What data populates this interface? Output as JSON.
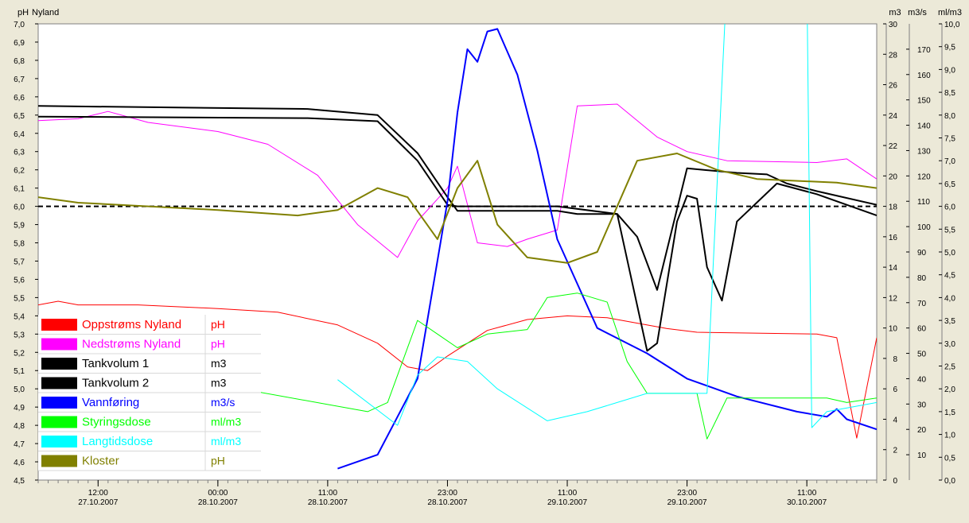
{
  "chart_data": {
    "type": "line",
    "title": "Nyland",
    "x_axis": {
      "start": "2007-10-27 06:00",
      "end": "2007-10-30 18:00",
      "tick_labels": [
        {
          "time": "12:00",
          "date": "27.10.2007",
          "at": "2007-10-27 12:00"
        },
        {
          "time": "00:00",
          "date": "28.10.2007",
          "at": "2007-10-28 00:00"
        },
        {
          "time": "11:00",
          "date": "28.10.2007",
          "at": "2007-10-28 11:00"
        },
        {
          "time": "23:00",
          "date": "28.10.2007",
          "at": "2007-10-28 23:00"
        },
        {
          "time": "11:00",
          "date": "29.10.2007",
          "at": "2007-10-29 11:00"
        },
        {
          "time": "23:00",
          "date": "29.10.2007",
          "at": "2007-10-29 23:00"
        },
        {
          "time": "11:00",
          "date": "30.10.2007",
          "at": "2007-10-30 11:00"
        }
      ]
    },
    "axes": [
      {
        "id": "ph",
        "unit": "pH",
        "min": 4.5,
        "max": 7.0,
        "side": "left",
        "ticks": [
          "4,5",
          "4,6",
          "4,7",
          "4,8",
          "4,9",
          "5,0",
          "5,1",
          "5,2",
          "5,3",
          "5,4",
          "5,5",
          "5,6",
          "5,7",
          "5,8",
          "5,9",
          "6,0",
          "6,1",
          "6,2",
          "6,3",
          "6,4",
          "6,5",
          "6,6",
          "6,7",
          "6,8",
          "6,9",
          "7,0"
        ]
      },
      {
        "id": "m3",
        "unit": "m3",
        "min": 0,
        "max": 30,
        "side": "right",
        "ticks": [
          "0",
          "2",
          "4",
          "6",
          "8",
          "10",
          "12",
          "14",
          "16",
          "18",
          "20",
          "22",
          "24",
          "26",
          "28",
          "30"
        ]
      },
      {
        "id": "m3s",
        "unit": "m3/s",
        "min": 0,
        "max": 180,
        "side": "right",
        "ticks": [
          "10",
          "20",
          "30",
          "40",
          "50",
          "60",
          "70",
          "80",
          "90",
          "100",
          "110",
          "120",
          "130",
          "140",
          "150",
          "160",
          "170"
        ]
      },
      {
        "id": "mlm3",
        "unit": "ml/m3",
        "min": 0,
        "max": 10,
        "side": "right",
        "ticks": [
          "0,0",
          "0,5",
          "1,0",
          "1,5",
          "2,0",
          "2,5",
          "3,0",
          "3,5",
          "4,0",
          "4,5",
          "5,0",
          "5,5",
          "6,0",
          "6,5",
          "7,0",
          "7,5",
          "8,0",
          "8,5",
          "9,0",
          "9,5",
          "10,0"
        ]
      }
    ],
    "reference_line": {
      "axis": "ph",
      "value": 6.0,
      "style": "dashed"
    },
    "legend_position": "bottom-left",
    "series": [
      {
        "name": "Oppstrøms Nyland",
        "unit": "pH",
        "axis": "ph",
        "color": "#ff0000",
        "width": 1,
        "points": [
          [
            "2007-10-27 06:00",
            5.46
          ],
          [
            "2007-10-27 08:00",
            5.48
          ],
          [
            "2007-10-27 10:00",
            5.46
          ],
          [
            "2007-10-27 16:00",
            5.46
          ],
          [
            "2007-10-28 00:00",
            5.44
          ],
          [
            "2007-10-28 06:00",
            5.42
          ],
          [
            "2007-10-28 12:00",
            5.35
          ],
          [
            "2007-10-28 16:00",
            5.25
          ],
          [
            "2007-10-28 19:00",
            5.12
          ],
          [
            "2007-10-28 21:00",
            5.1
          ],
          [
            "2007-10-28 23:00",
            5.18
          ],
          [
            "2007-10-29 03:00",
            5.32
          ],
          [
            "2007-10-29 07:00",
            5.38
          ],
          [
            "2007-10-29 11:00",
            5.4
          ],
          [
            "2007-10-29 15:00",
            5.39
          ],
          [
            "2007-10-29 21:00",
            5.33
          ],
          [
            "2007-10-30 00:00",
            5.31
          ],
          [
            "2007-10-30 12:00",
            5.3
          ],
          [
            "2007-10-30 14:00",
            5.28
          ],
          [
            "2007-10-30 16:00",
            4.73
          ],
          [
            "2007-10-30 18:00",
            5.28
          ]
        ]
      },
      {
        "name": "Nedstrøms Nyland",
        "unit": "pH",
        "axis": "ph",
        "color": "#ff00ff",
        "width": 1,
        "points": [
          [
            "2007-10-27 06:00",
            6.47
          ],
          [
            "2007-10-27 10:00",
            6.48
          ],
          [
            "2007-10-27 13:00",
            6.52
          ],
          [
            "2007-10-27 17:00",
            6.46
          ],
          [
            "2007-10-28 00:00",
            6.41
          ],
          [
            "2007-10-28 05:00",
            6.34
          ],
          [
            "2007-10-28 10:00",
            6.17
          ],
          [
            "2007-10-28 14:00",
            5.9
          ],
          [
            "2007-10-28 18:00",
            5.72
          ],
          [
            "2007-10-28 20:00",
            5.92
          ],
          [
            "2007-10-28 23:00",
            6.1
          ],
          [
            "2007-10-29 00:00",
            6.22
          ],
          [
            "2007-10-29 02:00",
            5.8
          ],
          [
            "2007-10-29 05:00",
            5.78
          ],
          [
            "2007-10-29 07:00",
            5.82
          ],
          [
            "2007-10-29 10:00",
            5.87
          ],
          [
            "2007-10-29 12:00",
            6.55
          ],
          [
            "2007-10-29 16:00",
            6.56
          ],
          [
            "2007-10-29 20:00",
            6.38
          ],
          [
            "2007-10-29 23:00",
            6.3
          ],
          [
            "2007-10-30 03:00",
            6.25
          ],
          [
            "2007-10-30 12:00",
            6.24
          ],
          [
            "2007-10-30 15:00",
            6.26
          ],
          [
            "2007-10-30 18:00",
            6.15
          ]
        ]
      },
      {
        "name": "Tankvolum 1",
        "unit": "m3",
        "axis": "m3",
        "color": "#000000",
        "width": 2,
        "points": [
          [
            "2007-10-27 06:00",
            24.6
          ],
          [
            "2007-10-28 09:00",
            24.4
          ],
          [
            "2007-10-28 16:00",
            24.0
          ],
          [
            "2007-10-28 20:00",
            21.5
          ],
          [
            "2007-10-28 23:00",
            18.6
          ],
          [
            "2007-10-29 00:00",
            17.7
          ],
          [
            "2007-10-29 10:00",
            17.7
          ],
          [
            "2007-10-29 12:00",
            17.5
          ],
          [
            "2007-10-29 16:00",
            17.5
          ],
          [
            "2007-10-29 18:00",
            16.0
          ],
          [
            "2007-10-29 20:00",
            12.5
          ],
          [
            "2007-10-29 21:30",
            16.5
          ],
          [
            "2007-10-29 23:00",
            20.5
          ],
          [
            "2007-10-30 04:00",
            20.2
          ],
          [
            "2007-10-30 07:00",
            20.1
          ],
          [
            "2007-10-30 09:00",
            19.5
          ],
          [
            "2007-10-30 12:00",
            19.0
          ],
          [
            "2007-10-30 18:00",
            18.1
          ]
        ]
      },
      {
        "name": "Tankvolum 2",
        "unit": "m3",
        "axis": "m3",
        "color": "#000000",
        "width": 2,
        "points": [
          [
            "2007-10-27 06:00",
            23.9
          ],
          [
            "2007-10-28 09:00",
            23.8
          ],
          [
            "2007-10-28 16:00",
            23.6
          ],
          [
            "2007-10-28 20:00",
            21.0
          ],
          [
            "2007-10-28 23:00",
            18.1
          ],
          [
            "2007-10-29 00:00",
            18.0
          ],
          [
            "2007-10-29 10:00",
            18.0
          ],
          [
            "2007-10-29 16:00",
            17.5
          ],
          [
            "2007-10-29 19:00",
            8.5
          ],
          [
            "2007-10-29 20:00",
            9.0
          ],
          [
            "2007-10-29 22:00",
            17.0
          ],
          [
            "2007-10-29 23:00",
            18.7
          ],
          [
            "2007-10-30 00:00",
            18.5
          ],
          [
            "2007-10-30 01:00",
            14.0
          ],
          [
            "2007-10-30 02:30",
            11.8
          ],
          [
            "2007-10-30 04:00",
            17.0
          ],
          [
            "2007-10-30 08:00",
            19.5
          ],
          [
            "2007-10-30 12:00",
            18.8
          ],
          [
            "2007-10-30 18:00",
            17.4
          ]
        ]
      },
      {
        "name": "Vannføring",
        "unit": "m3/s",
        "axis": "m3s",
        "color": "#0000ff",
        "width": 2,
        "points": [
          [
            "2007-10-28 12:00",
            4.5
          ],
          [
            "2007-10-28 16:00",
            10
          ],
          [
            "2007-10-28 20:00",
            40
          ],
          [
            "2007-10-28 23:00",
            110
          ],
          [
            "2007-10-29 00:00",
            145
          ],
          [
            "2007-10-29 01:00",
            170
          ],
          [
            "2007-10-29 02:00",
            165
          ],
          [
            "2007-10-29 03:00",
            177
          ],
          [
            "2007-10-29 04:00",
            178
          ],
          [
            "2007-10-29 06:00",
            160
          ],
          [
            "2007-10-29 08:00",
            130
          ],
          [
            "2007-10-29 10:00",
            95
          ],
          [
            "2007-10-29 14:00",
            60
          ],
          [
            "2007-10-29 19:00",
            50
          ],
          [
            "2007-10-29 23:00",
            40
          ],
          [
            "2007-10-30 04:00",
            33
          ],
          [
            "2007-10-30 10:00",
            27
          ],
          [
            "2007-10-30 13:00",
            25
          ],
          [
            "2007-10-30 14:00",
            28
          ],
          [
            "2007-10-30 15:00",
            24
          ],
          [
            "2007-10-30 18:00",
            20
          ]
        ]
      },
      {
        "name": "Styringsdose",
        "unit": "ml/m3",
        "axis": "mlm3",
        "color": "#00ff00",
        "width": 1,
        "points": [
          [
            "2007-10-27 06:00",
            2.8
          ],
          [
            "2007-10-28 15:00",
            1.5
          ],
          [
            "2007-10-28 17:00",
            1.7
          ],
          [
            "2007-10-28 20:00",
            3.5
          ],
          [
            "2007-10-28 22:00",
            3.2
          ],
          [
            "2007-10-29 00:00",
            2.9
          ],
          [
            "2007-10-29 03:00",
            3.2
          ],
          [
            "2007-10-29 07:00",
            3.3
          ],
          [
            "2007-10-29 09:00",
            4.0
          ],
          [
            "2007-10-29 12:00",
            4.1
          ],
          [
            "2007-10-29 15:00",
            3.9
          ],
          [
            "2007-10-29 17:00",
            2.6
          ],
          [
            "2007-10-29 19:00",
            1.9
          ],
          [
            "2007-10-30 00:00",
            1.9
          ],
          [
            "2007-10-30 01:00",
            0.9
          ],
          [
            "2007-10-30 03:00",
            1.8
          ],
          [
            "2007-10-30 13:00",
            1.8
          ],
          [
            "2007-10-30 15:00",
            1.7
          ],
          [
            "2007-10-30 18:00",
            1.8
          ]
        ]
      },
      {
        "name": "Langtidsdose",
        "unit": "ml/m3",
        "axis": "mlm3",
        "color": "#00ffff",
        "width": 1,
        "points": [
          [
            "2007-10-28 12:00",
            2.2
          ],
          [
            "2007-10-28 18:00",
            1.2
          ],
          [
            "2007-10-28 20:00",
            2.3
          ],
          [
            "2007-10-28 22:00",
            2.7
          ],
          [
            "2007-10-29 01:00",
            2.6
          ],
          [
            "2007-10-29 04:00",
            2.0
          ],
          [
            "2007-10-29 09:00",
            1.3
          ],
          [
            "2007-10-29 13:00",
            1.5
          ],
          [
            "2007-10-29 19:00",
            1.9
          ],
          [
            "2007-10-30 01:00",
            1.9
          ],
          [
            "2007-10-30 03:00",
            11.0
          ],
          [
            "2007-10-30 11:00",
            11.0
          ],
          [
            "2007-10-30 11:30",
            1.15
          ],
          [
            "2007-10-30 13:00",
            1.5
          ],
          [
            "2007-10-30 18:00",
            1.7
          ]
        ]
      },
      {
        "name": "Kloster",
        "unit": "pH",
        "axis": "ph",
        "color": "#808000",
        "width": 2,
        "points": [
          [
            "2007-10-27 06:00",
            6.05
          ],
          [
            "2007-10-27 10:00",
            6.02
          ],
          [
            "2007-10-28 00:00",
            5.98
          ],
          [
            "2007-10-28 08:00",
            5.95
          ],
          [
            "2007-10-28 12:00",
            5.98
          ],
          [
            "2007-10-28 16:00",
            6.1
          ],
          [
            "2007-10-28 19:00",
            6.05
          ],
          [
            "2007-10-28 22:00",
            5.82
          ],
          [
            "2007-10-29 00:00",
            6.1
          ],
          [
            "2007-10-29 02:00",
            6.25
          ],
          [
            "2007-10-29 04:00",
            5.9
          ],
          [
            "2007-10-29 07:00",
            5.72
          ],
          [
            "2007-10-29 11:00",
            5.69
          ],
          [
            "2007-10-29 14:00",
            5.75
          ],
          [
            "2007-10-29 18:00",
            6.25
          ],
          [
            "2007-10-29 22:00",
            6.29
          ],
          [
            "2007-10-30 02:00",
            6.2
          ],
          [
            "2007-10-30 06:00",
            6.15
          ],
          [
            "2007-10-30 14:00",
            6.13
          ],
          [
            "2007-10-30 18:00",
            6.1
          ]
        ]
      }
    ]
  }
}
